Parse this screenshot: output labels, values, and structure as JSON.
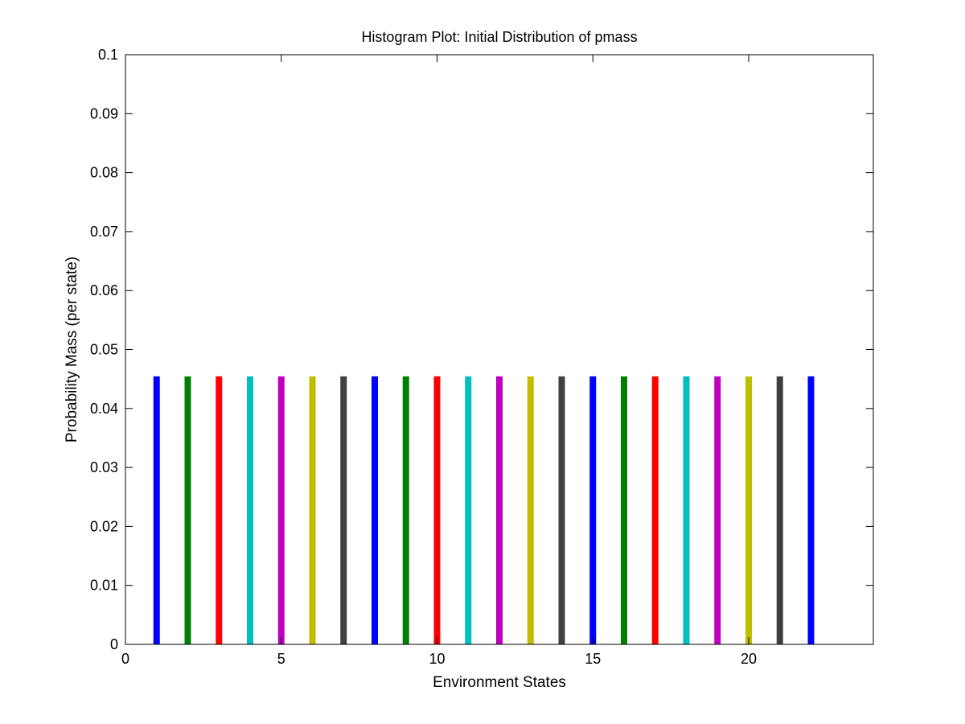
{
  "chart_data": {
    "type": "bar",
    "title": "Histogram Plot: Initial Distribution of pmass",
    "xlabel": "Environment States",
    "ylabel": "Probability Mass (per state)",
    "xlim": [
      0,
      24
    ],
    "ylim": [
      0,
      0.1
    ],
    "xticks": [
      0,
      5,
      10,
      15,
      20
    ],
    "yticks": [
      0,
      0.01,
      0.02,
      0.03,
      0.04,
      0.05,
      0.06,
      0.07,
      0.08,
      0.09,
      0.1
    ],
    "xtick_labels": [
      "0",
      "5",
      "10",
      "15",
      "20"
    ],
    "ytick_labels": [
      "0",
      "0.01",
      "0.02",
      "0.03",
      "0.04",
      "0.05",
      "0.06",
      "0.07",
      "0.08",
      "0.09",
      "0.1"
    ],
    "grid": false,
    "legend": false,
    "x": [
      1,
      2,
      3,
      4,
      5,
      6,
      7,
      8,
      9,
      10,
      11,
      12,
      13,
      14,
      15,
      16,
      17,
      18,
      19,
      20,
      21,
      22
    ],
    "values": [
      0.04545,
      0.04545,
      0.04545,
      0.04545,
      0.04545,
      0.04545,
      0.04545,
      0.04545,
      0.04545,
      0.04545,
      0.04545,
      0.04545,
      0.04545,
      0.04545,
      0.04545,
      0.04545,
      0.04545,
      0.04545,
      0.04545,
      0.04545,
      0.04545,
      0.04545
    ],
    "colors": [
      "#0000ff",
      "#008000",
      "#ff0000",
      "#00bfbf",
      "#bf00bf",
      "#bfbf00",
      "#404040"
    ]
  }
}
